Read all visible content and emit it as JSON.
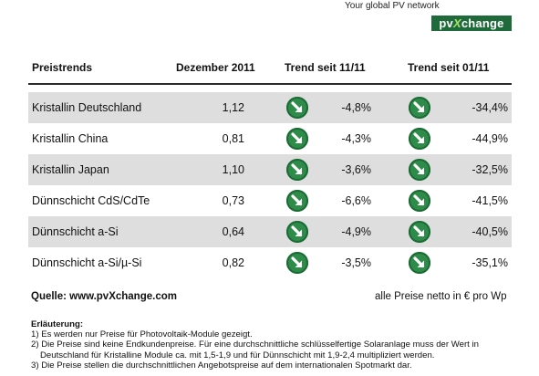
{
  "header": {
    "tagline": "Your global PV network",
    "logo_left": "pv",
    "logo_x": "X",
    "logo_right": "change"
  },
  "table": {
    "columns": [
      "Preistrends",
      "Dezember 2011",
      "Trend seit 11/11",
      "Trend seit 01/11"
    ],
    "rows": [
      {
        "name": "Kristallin Deutschland",
        "price": "1,12",
        "trend_11_11": "-4,8%",
        "trend_01_11": "-34,4%"
      },
      {
        "name": "Kristallin China",
        "price": "0,81",
        "trend_11_11": "-4,3%",
        "trend_01_11": "-44,9%"
      },
      {
        "name": "Kristallin Japan",
        "price": "1,10",
        "trend_11_11": "-3,6%",
        "trend_01_11": "-32,5%"
      },
      {
        "name": "Dünnschicht CdS/CdTe",
        "price": "0,73",
        "trend_11_11": "-6,6%",
        "trend_01_11": "-41,5%"
      },
      {
        "name": "Dünnschicht a-Si",
        "price": "0,64",
        "trend_11_11": "-4,9%",
        "trend_01_11": "-40,5%"
      },
      {
        "name": "Dünnschicht a-Si/µ-Si",
        "price": "0,82",
        "trend_11_11": "-3,5%",
        "trend_01_11": "-35,1%"
      }
    ],
    "arrow_icon": "down-right-arrow-icon",
    "arrow_color": "#2e8b4a",
    "shaded_row_color": "#dedede"
  },
  "footer": {
    "source": "Quelle: www.pvXchange.com",
    "units": "alle Preise netto in € pro Wp",
    "notes_title": "Erläuterung:",
    "note1": "1) Es werden nur Preise für Photovoltaik-Module gezeigt.",
    "note2a": "2) Die Preise sind keine Endkundenpreise. Für eine durchschnittliche schlüsselfertige Solaranlage  muss der Wert in",
    "note2b": "Deutschland für Kristalline Module ca. mit 1,5-1,9 und für Dünnschicht mit 1,9-2,4 multipliziert werden.",
    "note3": "3) Die Preise stellen die durchschnittlichen Angebotspreise auf dem internationalen Spotmarkt dar."
  }
}
